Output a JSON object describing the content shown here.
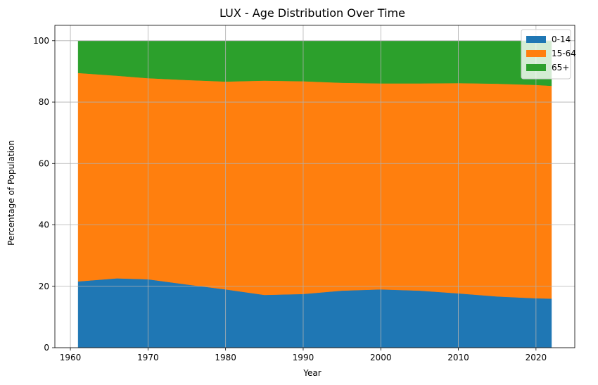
{
  "chart_data": {
    "type": "area",
    "stacked": true,
    "title": "LUX - Age Distribution Over Time",
    "xlabel": "Year",
    "ylabel": "Percentage of Population",
    "xlim": [
      1958.0,
      2025.0
    ],
    "ylim": [
      0,
      105
    ],
    "xticks": [
      1960,
      1970,
      1980,
      1990,
      2000,
      2010,
      2020
    ],
    "yticks": [
      0,
      20,
      40,
      60,
      80,
      100
    ],
    "grid": true,
    "legend_position": "top-right",
    "x": [
      1961,
      1966,
      1970,
      1975,
      1980,
      1985,
      1990,
      1995,
      2000,
      2005,
      2010,
      2015,
      2020,
      2022
    ],
    "series": [
      {
        "name": "0-14",
        "color": "#1f77b4",
        "values": [
          21.6,
          22.6,
          22.3,
          20.6,
          19.0,
          17.2,
          17.5,
          18.6,
          19.0,
          18.6,
          17.7,
          16.7,
          16.1,
          16.0
        ]
      },
      {
        "name": "15-64",
        "color": "#ff7f0e",
        "values": [
          67.9,
          66.0,
          65.5,
          66.6,
          67.7,
          69.8,
          69.3,
          67.7,
          67.1,
          67.5,
          68.5,
          69.3,
          69.5,
          69.3
        ]
      },
      {
        "name": "65+",
        "color": "#2ca02c",
        "values": [
          10.5,
          11.4,
          12.2,
          12.8,
          13.3,
          13.0,
          13.2,
          13.7,
          13.9,
          13.9,
          13.8,
          14.0,
          14.4,
          14.7
        ]
      }
    ]
  }
}
